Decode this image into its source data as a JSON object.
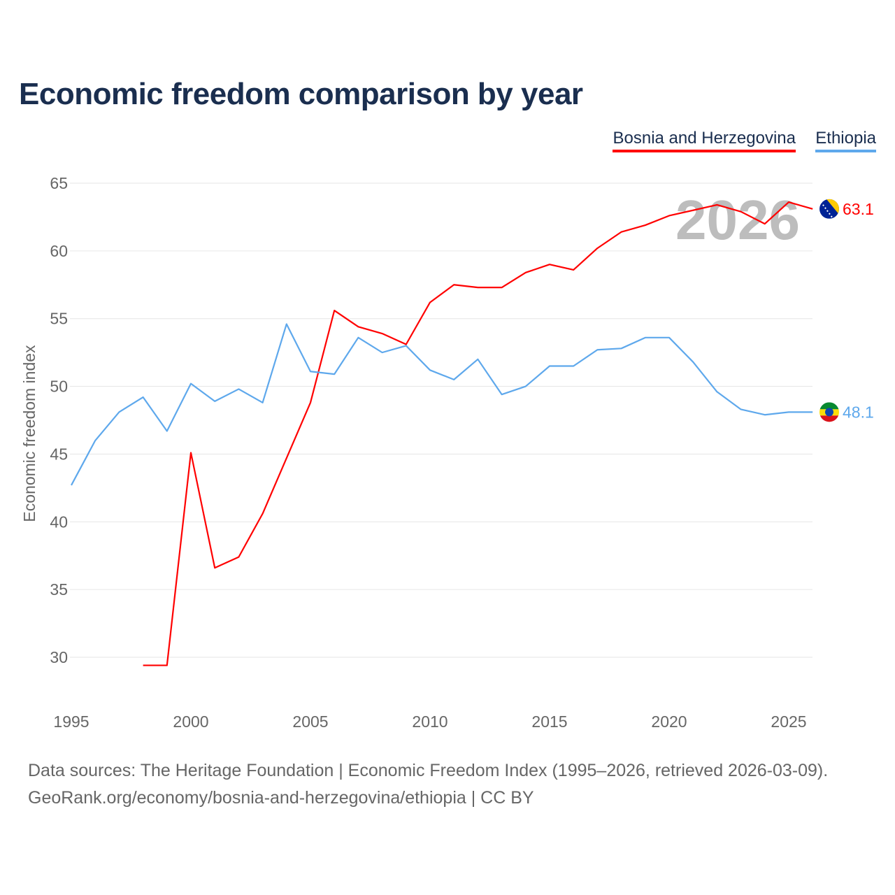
{
  "title": "Economic freedom comparison by year",
  "footer": {
    "line1": "Data sources: The Heritage Foundation | Economic Freedom Index (1995–2026, retrieved 2026-03-09).",
    "line2": "GeoRank.org/economy/bosnia-and-herzegovina/ethiopia | CC BY"
  },
  "chart_data": {
    "type": "line",
    "title": "Economic freedom comparison by year",
    "xlabel": "",
    "ylabel": "Economic freedom index",
    "xlim": [
      1995,
      2026
    ],
    "ylim": [
      27,
      65
    ],
    "yticks": [
      "30",
      "35",
      "40",
      "45",
      "50",
      "55",
      "60",
      "65"
    ],
    "xticks": [
      "1995",
      "2000",
      "2005",
      "2010",
      "2015",
      "2020",
      "2025"
    ],
    "watermark": "2026",
    "legend_position": "top-right",
    "grid": true,
    "series": [
      {
        "name": "Bosnia and Herzegovina",
        "color": "#ff0000",
        "end_label": "63.1",
        "flag": "bosnia-flag-icon",
        "x": [
          1998,
          1999,
          2000,
          2001,
          2002,
          2003,
          2004,
          2005,
          2006,
          2007,
          2008,
          2009,
          2010,
          2011,
          2012,
          2013,
          2014,
          2015,
          2016,
          2017,
          2018,
          2019,
          2020,
          2021,
          2022,
          2023,
          2024,
          2025,
          2026
        ],
        "values": [
          29.4,
          29.4,
          45.1,
          36.6,
          37.4,
          40.6,
          44.7,
          48.8,
          55.6,
          54.4,
          53.9,
          53.1,
          56.2,
          57.5,
          57.3,
          57.3,
          58.4,
          59.0,
          58.6,
          60.2,
          61.4,
          61.9,
          62.6,
          63.0,
          63.4,
          62.9,
          62.0,
          63.6,
          63.1
        ]
      },
      {
        "name": "Ethiopia",
        "color": "#5ea8ec",
        "end_label": "48.1",
        "flag": "ethiopia-flag-icon",
        "x": [
          1995,
          1996,
          1997,
          1998,
          1999,
          2000,
          2001,
          2002,
          2003,
          2004,
          2005,
          2006,
          2007,
          2008,
          2009,
          2010,
          2011,
          2012,
          2013,
          2014,
          2015,
          2016,
          2017,
          2018,
          2019,
          2020,
          2021,
          2022,
          2023,
          2024,
          2025,
          2026
        ],
        "values": [
          42.7,
          46.0,
          48.1,
          49.2,
          46.7,
          50.2,
          48.9,
          49.8,
          48.8,
          54.6,
          51.1,
          50.9,
          53.6,
          52.5,
          53.0,
          51.2,
          50.5,
          52.0,
          49.4,
          50.0,
          51.5,
          51.5,
          52.7,
          52.8,
          53.6,
          53.6,
          51.8,
          49.6,
          48.3,
          47.9,
          48.1,
          48.1
        ]
      }
    ]
  }
}
